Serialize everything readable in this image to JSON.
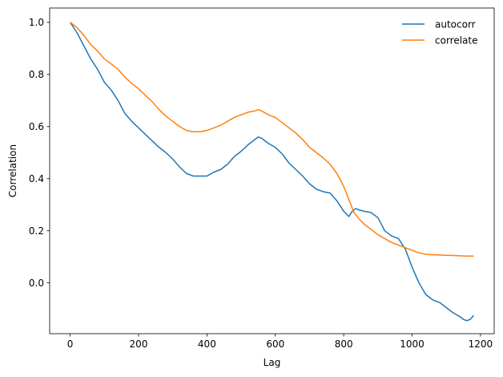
{
  "chart_data": {
    "type": "line",
    "title": "",
    "xlabel": "Lag",
    "ylabel": "Correlation",
    "xlim": [
      -60,
      1240
    ],
    "ylim": [
      -0.195,
      1.055
    ],
    "xticks": [
      0,
      200,
      400,
      600,
      800,
      1000,
      1200
    ],
    "xtick_labels": [
      "0",
      "200",
      "400",
      "600",
      "800",
      "1000",
      "1200"
    ],
    "yticks": [
      0.0,
      0.2,
      0.4,
      0.6,
      0.8,
      1.0
    ],
    "ytick_labels": [
      "0.0",
      "0.2",
      "0.4",
      "0.6",
      "0.8",
      "1.0"
    ],
    "grid": false,
    "legend_position": "top-right",
    "series": [
      {
        "name": "autocorr",
        "color": "#1f77b4",
        "x": [
          0,
          20,
          40,
          60,
          80,
          100,
          120,
          140,
          160,
          180,
          200,
          220,
          240,
          260,
          280,
          300,
          320,
          340,
          360,
          380,
          400,
          420,
          440,
          460,
          480,
          500,
          520,
          540,
          550,
          560,
          580,
          600,
          620,
          640,
          660,
          680,
          700,
          720,
          740,
          760,
          780,
          800,
          815,
          825,
          835,
          845,
          860,
          880,
          900,
          920,
          940,
          960,
          980,
          1000,
          1020,
          1040,
          1060,
          1080,
          1100,
          1120,
          1140,
          1150,
          1160,
          1170,
          1180
        ],
        "values": [
          1.0,
          0.96,
          0.91,
          0.86,
          0.82,
          0.77,
          0.74,
          0.7,
          0.65,
          0.62,
          0.595,
          0.57,
          0.545,
          0.52,
          0.5,
          0.475,
          0.445,
          0.42,
          0.41,
          0.41,
          0.41,
          0.425,
          0.435,
          0.455,
          0.485,
          0.505,
          0.53,
          0.55,
          0.56,
          0.555,
          0.535,
          0.52,
          0.495,
          0.46,
          0.435,
          0.41,
          0.38,
          0.36,
          0.35,
          0.345,
          0.315,
          0.275,
          0.255,
          0.275,
          0.285,
          0.28,
          0.275,
          0.27,
          0.25,
          0.2,
          0.18,
          0.17,
          0.13,
          0.06,
          0.0,
          -0.045,
          -0.065,
          -0.075,
          -0.095,
          -0.115,
          -0.13,
          -0.14,
          -0.145,
          -0.14,
          -0.125
        ]
      },
      {
        "name": "correlate",
        "color": "#ff7f0e",
        "x": [
          0,
          20,
          40,
          60,
          80,
          100,
          120,
          140,
          160,
          180,
          200,
          220,
          240,
          260,
          280,
          300,
          320,
          340,
          360,
          380,
          400,
          420,
          440,
          460,
          480,
          500,
          520,
          540,
          550,
          560,
          580,
          600,
          620,
          640,
          660,
          680,
          700,
          720,
          740,
          760,
          780,
          800,
          815,
          830,
          845,
          860,
          880,
          900,
          920,
          940,
          960,
          980,
          1000,
          1020,
          1040,
          1060,
          1080,
          1100,
          1120,
          1140,
          1160,
          1180
        ],
        "values": [
          1.0,
          0.98,
          0.95,
          0.915,
          0.89,
          0.86,
          0.84,
          0.82,
          0.79,
          0.765,
          0.745,
          0.72,
          0.695,
          0.665,
          0.64,
          0.62,
          0.6,
          0.585,
          0.58,
          0.58,
          0.585,
          0.595,
          0.605,
          0.62,
          0.635,
          0.645,
          0.655,
          0.66,
          0.665,
          0.66,
          0.645,
          0.635,
          0.615,
          0.595,
          0.575,
          0.55,
          0.52,
          0.5,
          0.48,
          0.455,
          0.42,
          0.37,
          0.32,
          0.27,
          0.245,
          0.225,
          0.205,
          0.185,
          0.17,
          0.155,
          0.145,
          0.135,
          0.125,
          0.115,
          0.11,
          0.108,
          0.107,
          0.106,
          0.105,
          0.104,
          0.103,
          0.103
        ]
      }
    ]
  }
}
